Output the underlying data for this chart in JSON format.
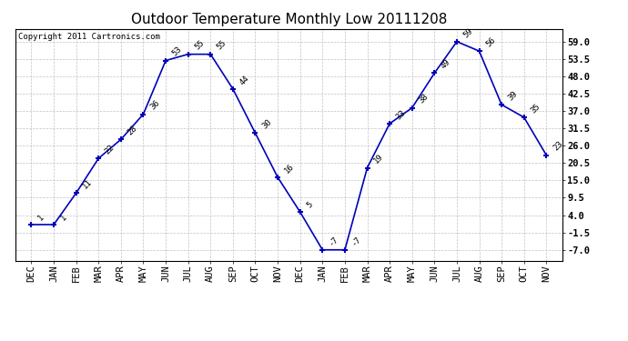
{
  "title": "Outdoor Temperature Monthly Low 20111208",
  "copyright": "Copyright 2011 Cartronics.com",
  "x_labels": [
    "DEC",
    "JAN",
    "FEB",
    "MAR",
    "APR",
    "MAY",
    "JUN",
    "JUL",
    "AUG",
    "SEP",
    "OCT",
    "NOV",
    "DEC",
    "JAN",
    "FEB",
    "MAR",
    "APR",
    "MAY",
    "JUN",
    "JUL",
    "AUG",
    "SEP",
    "OCT",
    "NOV"
  ],
  "y_values": [
    1,
    1,
    11,
    22,
    28,
    36,
    53,
    55,
    55,
    44,
    30,
    16,
    5,
    -7,
    -7,
    19,
    33,
    38,
    49,
    59,
    56,
    39,
    35,
    23
  ],
  "point_labels": [
    "1",
    "1",
    "11",
    "22",
    "28",
    "36",
    "53",
    "55",
    "55",
    "44",
    "30",
    "16",
    "5",
    "-7",
    "-7",
    "19",
    "33",
    "38",
    "49",
    "59",
    "56",
    "39",
    "35",
    "23"
  ],
  "y_ticks": [
    -7.0,
    -1.5,
    4.0,
    9.5,
    15.0,
    20.5,
    26.0,
    31.5,
    37.0,
    42.5,
    48.0,
    53.5,
    59.0
  ],
  "y_tick_labels": [
    "-7.0",
    "-1.5",
    "4.0",
    "9.5",
    "15.0",
    "20.5",
    "26.0",
    "31.5",
    "37.0",
    "42.5",
    "48.0",
    "53.5",
    "59.0"
  ],
  "line_color": "#0000bb",
  "marker_color": "#0000bb",
  "background_color": "#ffffff",
  "grid_color": "#bbbbbb",
  "title_fontsize": 11,
  "label_fontsize": 6.5,
  "tick_fontsize": 7.5,
  "copyright_fontsize": 6.5,
  "ylim_min": -10.5,
  "ylim_max": 63.0
}
